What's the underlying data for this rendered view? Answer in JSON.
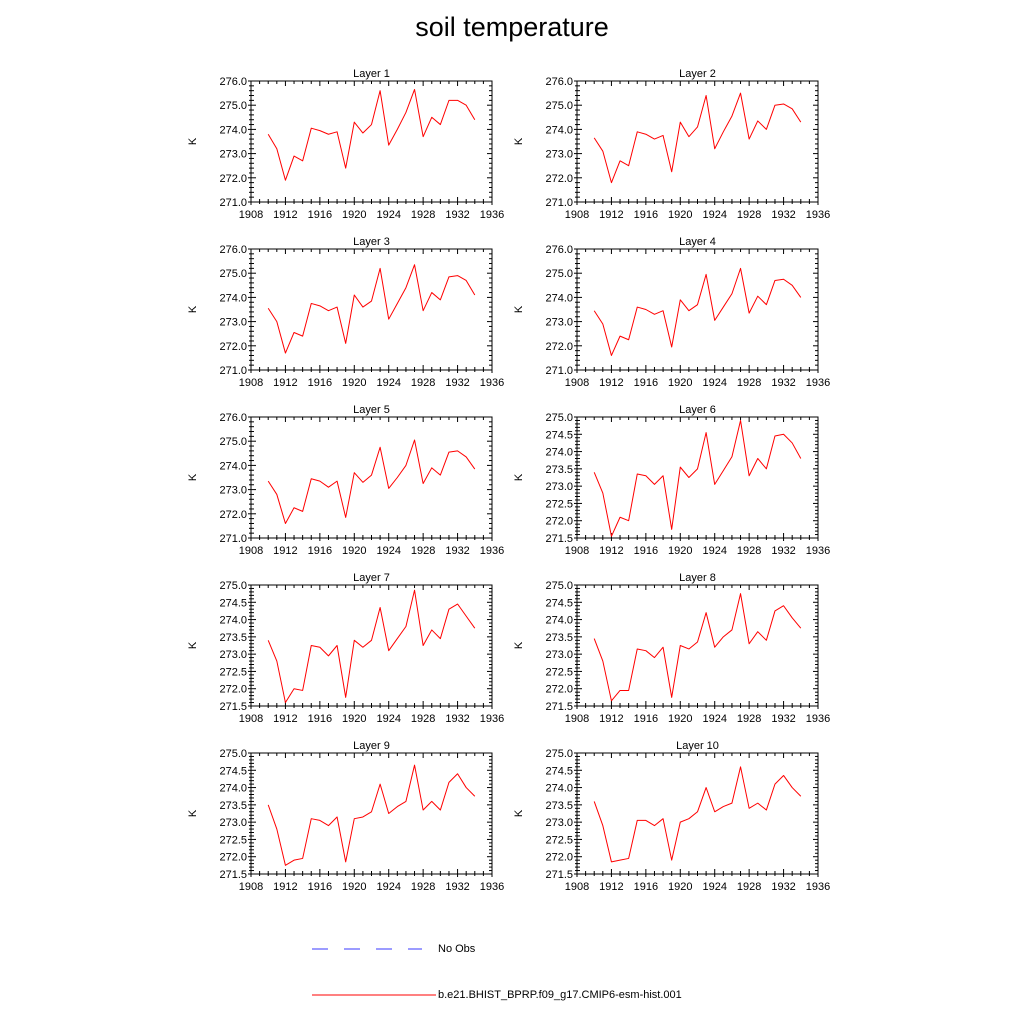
{
  "title": "soil temperature",
  "colors": {
    "model": "#ff0000",
    "obs": "#3a3aff",
    "axis": "#000000"
  },
  "legend": {
    "items": [
      {
        "label": "No Obs",
        "style": "dashed",
        "color": "#3a3aff"
      },
      {
        "label": "b.e21.BHIST_BPRP.f09_g17.CMIP6-esm-hist.001",
        "style": "solid",
        "color": "#ff0000"
      }
    ]
  },
  "chart_data": [
    {
      "type": "line",
      "title": "Layer 1",
      "ylabel": "K",
      "xlim": [
        1908,
        1936
      ],
      "ylim": [
        271.0,
        276.0
      ],
      "xticks": [
        "1908",
        "1912",
        "1916",
        "1920",
        "1924",
        "1928",
        "1932",
        "1936"
      ],
      "yticks": [
        "271.0",
        "272.0",
        "273.0",
        "274.0",
        "275.0",
        "276.0"
      ],
      "x": [
        1910,
        1911,
        1912,
        1913,
        1914,
        1915,
        1916,
        1917,
        1918,
        1919,
        1920,
        1921,
        1922,
        1923,
        1924,
        1925,
        1926,
        1927,
        1928,
        1929,
        1930,
        1931,
        1932,
        1933,
        1934
      ],
      "series": [
        {
          "name": "b.e21.BHIST_BPRP.f09_g17.CMIP6-esm-hist.001",
          "values": [
            273.8,
            273.2,
            271.9,
            272.9,
            272.7,
            274.05,
            273.95,
            273.8,
            273.9,
            272.4,
            274.3,
            273.85,
            274.2,
            275.6,
            273.35,
            274.0,
            274.7,
            275.65,
            273.7,
            274.5,
            274.2,
            275.2,
            275.2,
            275.0,
            274.4
          ]
        }
      ]
    },
    {
      "type": "line",
      "title": "Layer 2",
      "ylabel": "K",
      "xlim": [
        1908,
        1936
      ],
      "ylim": [
        271.0,
        276.0
      ],
      "xticks": [
        "1908",
        "1912",
        "1916",
        "1920",
        "1924",
        "1928",
        "1932",
        "1936"
      ],
      "yticks": [
        "271.0",
        "272.0",
        "273.0",
        "274.0",
        "275.0",
        "276.0"
      ],
      "x": [
        1910,
        1911,
        1912,
        1913,
        1914,
        1915,
        1916,
        1917,
        1918,
        1919,
        1920,
        1921,
        1922,
        1923,
        1924,
        1925,
        1926,
        1927,
        1928,
        1929,
        1930,
        1931,
        1932,
        1933,
        1934
      ],
      "series": [
        {
          "name": "b.e21.BHIST_BPRP.f09_g17.CMIP6-esm-hist.001",
          "values": [
            273.65,
            273.1,
            271.8,
            272.7,
            272.5,
            273.9,
            273.8,
            273.6,
            273.75,
            272.25,
            274.3,
            273.7,
            274.1,
            275.4,
            273.2,
            273.9,
            274.55,
            275.5,
            273.6,
            274.35,
            274.0,
            275.0,
            275.05,
            274.85,
            274.3
          ]
        }
      ]
    },
    {
      "type": "line",
      "title": "Layer 3",
      "ylabel": "K",
      "xlim": [
        1908,
        1936
      ],
      "ylim": [
        271.0,
        276.0
      ],
      "xticks": [
        "1908",
        "1912",
        "1916",
        "1920",
        "1924",
        "1928",
        "1932",
        "1936"
      ],
      "yticks": [
        "271.0",
        "272.0",
        "273.0",
        "274.0",
        "275.0",
        "276.0"
      ],
      "x": [
        1910,
        1911,
        1912,
        1913,
        1914,
        1915,
        1916,
        1917,
        1918,
        1919,
        1920,
        1921,
        1922,
        1923,
        1924,
        1925,
        1926,
        1927,
        1928,
        1929,
        1930,
        1931,
        1932,
        1933,
        1934
      ],
      "series": [
        {
          "name": "b.e21.BHIST_BPRP.f09_g17.CMIP6-esm-hist.001",
          "values": [
            273.55,
            273.0,
            271.7,
            272.55,
            272.4,
            273.75,
            273.65,
            273.45,
            273.6,
            272.1,
            274.1,
            273.6,
            273.85,
            275.2,
            273.1,
            273.75,
            274.4,
            275.35,
            273.45,
            274.2,
            273.9,
            274.85,
            274.9,
            274.7,
            274.1
          ]
        }
      ]
    },
    {
      "type": "line",
      "title": "Layer 4",
      "ylabel": "K",
      "xlim": [
        1908,
        1936
      ],
      "ylim": [
        271.0,
        276.0
      ],
      "xticks": [
        "1908",
        "1912",
        "1916",
        "1920",
        "1924",
        "1928",
        "1932",
        "1936"
      ],
      "yticks": [
        "271.0",
        "272.0",
        "273.0",
        "274.0",
        "275.0",
        "276.0"
      ],
      "x": [
        1910,
        1911,
        1912,
        1913,
        1914,
        1915,
        1916,
        1917,
        1918,
        1919,
        1920,
        1921,
        1922,
        1923,
        1924,
        1925,
        1926,
        1927,
        1928,
        1929,
        1930,
        1931,
        1932,
        1933,
        1934
      ],
      "series": [
        {
          "name": "b.e21.BHIST_BPRP.f09_g17.CMIP6-esm-hist.001",
          "values": [
            273.45,
            272.9,
            271.6,
            272.4,
            272.25,
            273.6,
            273.5,
            273.3,
            273.45,
            271.95,
            273.9,
            273.45,
            273.7,
            274.95,
            273.05,
            273.6,
            274.15,
            275.2,
            273.35,
            274.05,
            273.7,
            274.7,
            274.75,
            274.5,
            274.0
          ]
        }
      ]
    },
    {
      "type": "line",
      "title": "Layer 5",
      "ylabel": "K",
      "xlim": [
        1908,
        1936
      ],
      "ylim": [
        271.0,
        276.0
      ],
      "xticks": [
        "1908",
        "1912",
        "1916",
        "1920",
        "1924",
        "1928",
        "1932",
        "1936"
      ],
      "yticks": [
        "271.0",
        "272.0",
        "273.0",
        "274.0",
        "275.0",
        "276.0"
      ],
      "x": [
        1910,
        1911,
        1912,
        1913,
        1914,
        1915,
        1916,
        1917,
        1918,
        1919,
        1920,
        1921,
        1922,
        1923,
        1924,
        1925,
        1926,
        1927,
        1928,
        1929,
        1930,
        1931,
        1932,
        1933,
        1934
      ],
      "series": [
        {
          "name": "b.e21.BHIST_BPRP.f09_g17.CMIP6-esm-hist.001",
          "values": [
            273.35,
            272.8,
            271.6,
            272.25,
            272.1,
            273.45,
            273.35,
            273.1,
            273.35,
            271.85,
            273.7,
            273.3,
            273.6,
            274.75,
            273.05,
            273.5,
            274.0,
            275.05,
            273.25,
            273.9,
            273.6,
            274.55,
            274.6,
            274.35,
            273.85
          ]
        }
      ]
    },
    {
      "type": "line",
      "title": "Layer 6",
      "ylabel": "K",
      "xlim": [
        1908,
        1936
      ],
      "ylim": [
        271.5,
        275.0
      ],
      "xticks": [
        "1908",
        "1912",
        "1916",
        "1920",
        "1924",
        "1928",
        "1932",
        "1936"
      ],
      "yticks": [
        "271.5",
        "272.0",
        "272.5",
        "273.0",
        "273.5",
        "274.0",
        "274.5",
        "275.0"
      ],
      "x": [
        1910,
        1911,
        1912,
        1913,
        1914,
        1915,
        1916,
        1917,
        1918,
        1919,
        1920,
        1921,
        1922,
        1923,
        1924,
        1925,
        1926,
        1927,
        1928,
        1929,
        1930,
        1931,
        1932,
        1933,
        1934
      ],
      "series": [
        {
          "name": "b.e21.BHIST_BPRP.f09_g17.CMIP6-esm-hist.001",
          "values": [
            273.4,
            272.8,
            271.55,
            272.1,
            272.0,
            273.35,
            273.3,
            273.05,
            273.3,
            271.75,
            273.55,
            273.25,
            273.5,
            274.55,
            273.05,
            273.45,
            273.85,
            274.9,
            273.3,
            273.8,
            273.5,
            274.45,
            274.5,
            274.25,
            273.8
          ]
        }
      ]
    },
    {
      "type": "line",
      "title": "Layer 7",
      "ylabel": "K",
      "xlim": [
        1908,
        1936
      ],
      "ylim": [
        271.5,
        275.0
      ],
      "xticks": [
        "1908",
        "1912",
        "1916",
        "1920",
        "1924",
        "1928",
        "1932",
        "1936"
      ],
      "yticks": [
        "271.5",
        "272.0",
        "272.5",
        "273.0",
        "273.5",
        "274.0",
        "274.5",
        "275.0"
      ],
      "x": [
        1910,
        1911,
        1912,
        1913,
        1914,
        1915,
        1916,
        1917,
        1918,
        1919,
        1920,
        1921,
        1922,
        1923,
        1924,
        1925,
        1926,
        1927,
        1928,
        1929,
        1930,
        1931,
        1932,
        1933,
        1934
      ],
      "series": [
        {
          "name": "b.e21.BHIST_BPRP.f09_g17.CMIP6-esm-hist.001",
          "values": [
            273.4,
            272.8,
            271.6,
            272.0,
            271.95,
            273.25,
            273.2,
            272.95,
            273.25,
            271.75,
            273.4,
            273.2,
            273.4,
            274.35,
            273.1,
            273.45,
            273.8,
            274.85,
            273.25,
            273.7,
            273.45,
            274.3,
            274.45,
            274.1,
            273.75
          ]
        }
      ]
    },
    {
      "type": "line",
      "title": "Layer 8",
      "ylabel": "K",
      "xlim": [
        1908,
        1936
      ],
      "ylim": [
        271.5,
        275.0
      ],
      "xticks": [
        "1908",
        "1912",
        "1916",
        "1920",
        "1924",
        "1928",
        "1932",
        "1936"
      ],
      "yticks": [
        "271.5",
        "272.0",
        "272.5",
        "273.0",
        "273.5",
        "274.0",
        "274.5",
        "275.0"
      ],
      "x": [
        1910,
        1911,
        1912,
        1913,
        1914,
        1915,
        1916,
        1917,
        1918,
        1919,
        1920,
        1921,
        1922,
        1923,
        1924,
        1925,
        1926,
        1927,
        1928,
        1929,
        1930,
        1931,
        1932,
        1933,
        1934
      ],
      "series": [
        {
          "name": "b.e21.BHIST_BPRP.f09_g17.CMIP6-esm-hist.001",
          "values": [
            273.45,
            272.8,
            271.65,
            271.95,
            271.95,
            273.15,
            273.1,
            272.9,
            273.2,
            271.75,
            273.25,
            273.15,
            273.35,
            274.2,
            273.2,
            273.5,
            273.7,
            274.75,
            273.3,
            273.65,
            273.4,
            274.25,
            274.4,
            274.05,
            273.75
          ]
        }
      ]
    },
    {
      "type": "line",
      "title": "Layer 9",
      "ylabel": "K",
      "xlim": [
        1908,
        1936
      ],
      "ylim": [
        271.5,
        275.0
      ],
      "xticks": [
        "1908",
        "1912",
        "1916",
        "1920",
        "1924",
        "1928",
        "1932",
        "1936"
      ],
      "yticks": [
        "271.5",
        "272.0",
        "272.5",
        "273.0",
        "273.5",
        "274.0",
        "274.5",
        "275.0"
      ],
      "x": [
        1910,
        1911,
        1912,
        1913,
        1914,
        1915,
        1916,
        1917,
        1918,
        1919,
        1920,
        1921,
        1922,
        1923,
        1924,
        1925,
        1926,
        1927,
        1928,
        1929,
        1930,
        1931,
        1932,
        1933,
        1934
      ],
      "series": [
        {
          "name": "b.e21.BHIST_BPRP.f09_g17.CMIP6-esm-hist.001",
          "values": [
            273.5,
            272.8,
            271.75,
            271.9,
            271.95,
            273.1,
            273.05,
            272.9,
            273.15,
            271.85,
            273.1,
            273.15,
            273.3,
            274.1,
            273.25,
            273.45,
            273.6,
            274.65,
            273.35,
            273.6,
            273.35,
            274.15,
            274.4,
            274.0,
            273.75
          ]
        }
      ]
    },
    {
      "type": "line",
      "title": "Layer 10",
      "ylabel": "K",
      "xlim": [
        1908,
        1936
      ],
      "ylim": [
        271.5,
        275.0
      ],
      "xticks": [
        "1908",
        "1912",
        "1916",
        "1920",
        "1924",
        "1928",
        "1932",
        "1936"
      ],
      "yticks": [
        "271.5",
        "272.0",
        "272.5",
        "273.0",
        "273.5",
        "274.0",
        "274.5",
        "275.0"
      ],
      "x": [
        1910,
        1911,
        1912,
        1913,
        1914,
        1915,
        1916,
        1917,
        1918,
        1919,
        1920,
        1921,
        1922,
        1923,
        1924,
        1925,
        1926,
        1927,
        1928,
        1929,
        1930,
        1931,
        1932,
        1933,
        1934
      ],
      "series": [
        {
          "name": "b.e21.BHIST_BPRP.f09_g17.CMIP6-esm-hist.001",
          "values": [
            273.6,
            272.9,
            271.85,
            271.9,
            271.95,
            273.05,
            273.05,
            272.9,
            273.1,
            271.9,
            273.0,
            273.1,
            273.3,
            274.0,
            273.3,
            273.45,
            273.55,
            274.6,
            273.4,
            273.55,
            273.35,
            274.1,
            274.35,
            274.0,
            273.75
          ]
        }
      ]
    }
  ]
}
